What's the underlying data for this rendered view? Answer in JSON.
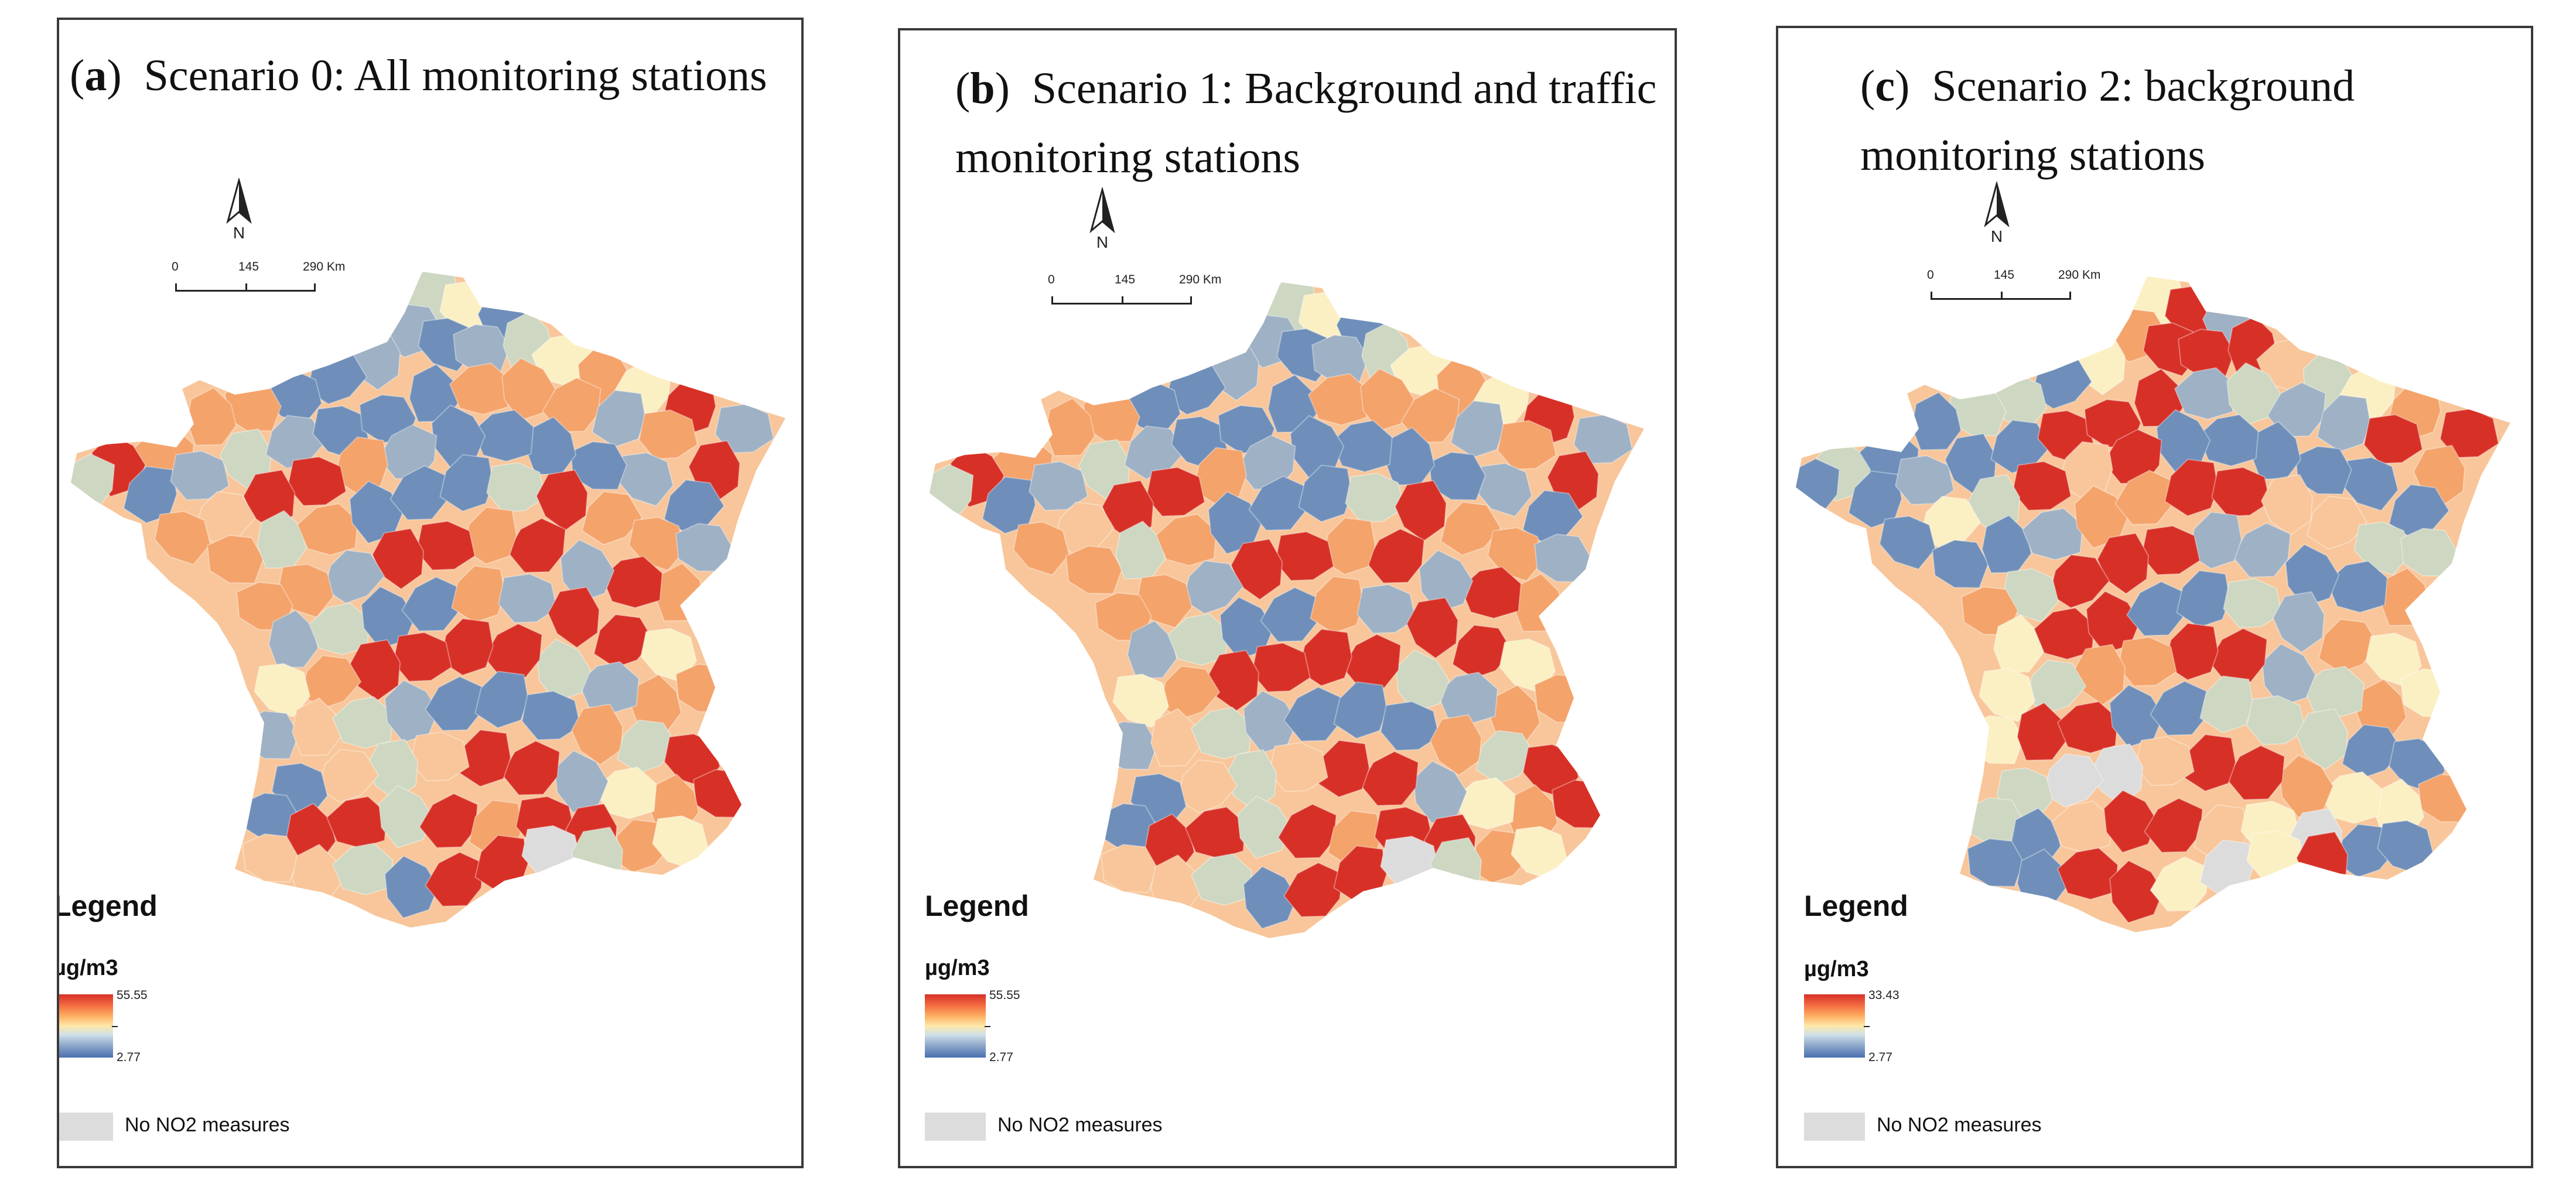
{
  "panels": [
    {
      "id": "a",
      "title_letter": "a",
      "title_text": "Scenario 0: All monitoring stations",
      "scale": [
        "0",
        "145",
        "290 Km"
      ],
      "north": "N",
      "legend_title": "Legend",
      "legend_unit": "µg/m3",
      "legend_max": "55.55",
      "legend_min": "2.77",
      "nodata_label": "No NO2 measures"
    },
    {
      "id": "b",
      "title_letter": "b",
      "title_text": "Scenario 1: Background and traffic monitoring stations",
      "scale": [
        "0",
        "145",
        "290 Km"
      ],
      "north": "N",
      "legend_title": "Legend",
      "legend_unit": "µg/m3",
      "legend_max": "55.55",
      "legend_min": "2.77",
      "nodata_label": "No NO2 measures"
    },
    {
      "id": "c",
      "title_letter": "c",
      "title_text": "Scenario 2: background monitoring stations",
      "scale": [
        "0",
        "145",
        "290 Km"
      ],
      "north": "N",
      "legend_title": "Legend",
      "legend_unit": "µg/m3",
      "legend_max": "33.43",
      "legend_min": "2.77",
      "nodata_label": "No NO2 measures"
    }
  ],
  "colors": {
    "red": "#d73027",
    "orange_red": "#e8553a",
    "orange": "#f4a36b",
    "light_orange": "#f8c69a",
    "pale_yellow": "#fbf0c4",
    "pale_green": "#cdd7c2",
    "grey_blue": "#9fb1c4",
    "mid_blue": "#6f8fba",
    "blue": "#4a6fb0",
    "no_data": "#dcdcdc"
  }
}
